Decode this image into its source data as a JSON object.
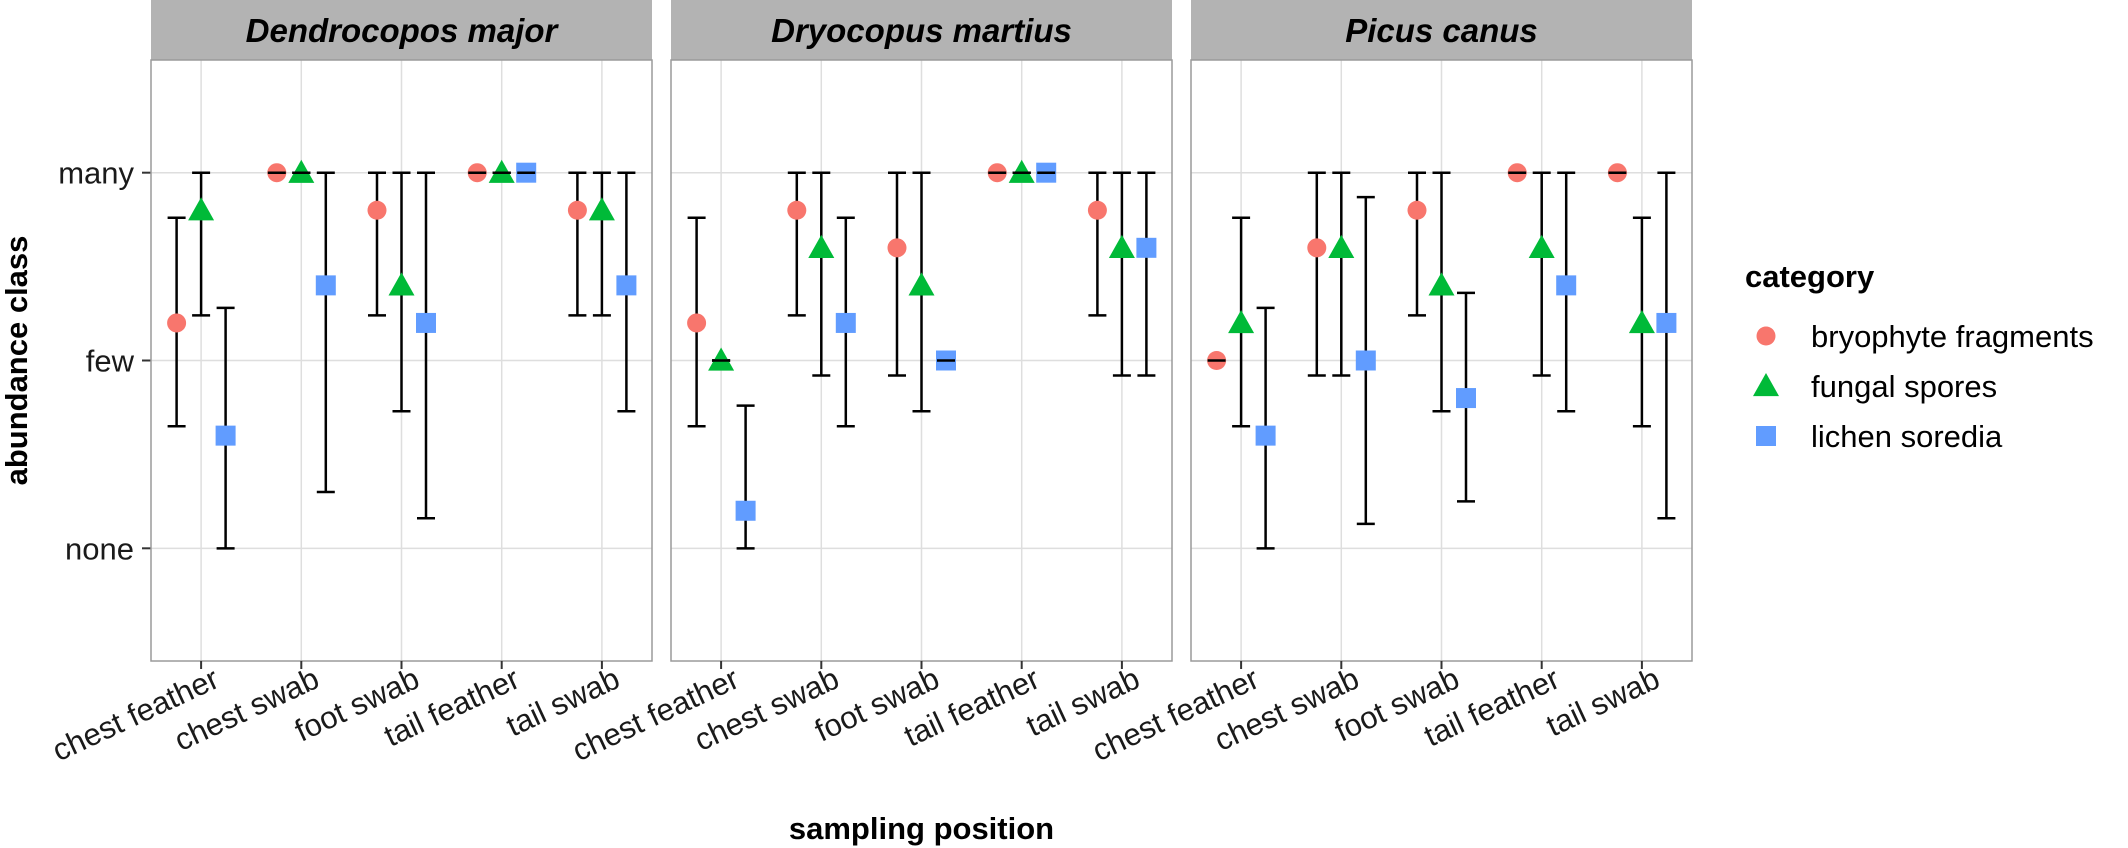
{
  "chart_data": {
    "type": "scatter",
    "facets": [
      "Dendrocopos major",
      "Dryocopus martius",
      "Picus canus"
    ],
    "categories": [
      "chest feather",
      "chest swab",
      "foot swab",
      "tail feather",
      "tail swab"
    ],
    "ylabel": "abundance class",
    "xlabel": "sampling position",
    "y_ticks": [
      {
        "label": "none",
        "value": 0
      },
      {
        "label": "few",
        "value": 1
      },
      {
        "label": "many",
        "value": 2
      }
    ],
    "ylim": [
      -0.6,
      2.6
    ],
    "legend_title": "category",
    "legend_position": "right",
    "grid": true,
    "series": [
      {
        "name": "bryophyte fragments",
        "shape": "circle",
        "color": "#F8766D"
      },
      {
        "name": "fungal spores",
        "shape": "triangle",
        "color": "#00BA38"
      },
      {
        "name": "lichen soredia",
        "shape": "square",
        "color": "#619CFF"
      }
    ],
    "points": {
      "Dendrocopos major": [
        [
          {
            "y": 1.2,
            "lo": 0.65,
            "hi": 1.76
          },
          {
            "y": 1.8,
            "lo": 1.24,
            "hi": 2.0
          },
          {
            "y": 0.6,
            "lo": 0.0,
            "hi": 1.28
          }
        ],
        [
          {
            "y": 2.0,
            "lo": 2.0,
            "hi": 2.0
          },
          {
            "y": 2.0,
            "lo": 2.0,
            "hi": 2.0
          },
          {
            "y": 1.4,
            "lo": 0.3,
            "hi": 2.0
          }
        ],
        [
          {
            "y": 1.8,
            "lo": 1.24,
            "hi": 2.0
          },
          {
            "y": 1.4,
            "lo": 0.73,
            "hi": 2.0
          },
          {
            "y": 1.2,
            "lo": 0.16,
            "hi": 2.0
          }
        ],
        [
          {
            "y": 2.0,
            "lo": 2.0,
            "hi": 2.0
          },
          {
            "y": 2.0,
            "lo": 2.0,
            "hi": 2.0
          },
          {
            "y": 2.0,
            "lo": 2.0,
            "hi": 2.0
          }
        ],
        [
          {
            "y": 1.8,
            "lo": 1.24,
            "hi": 2.0
          },
          {
            "y": 1.8,
            "lo": 1.24,
            "hi": 2.0
          },
          {
            "y": 1.4,
            "lo": 0.73,
            "hi": 2.0
          }
        ]
      ],
      "Dryocopus martius": [
        [
          {
            "y": 1.2,
            "lo": 0.65,
            "hi": 1.76
          },
          {
            "y": 1.0,
            "lo": 1.0,
            "hi": 1.0
          },
          {
            "y": 0.2,
            "lo": 0.0,
            "hi": 0.76
          }
        ],
        [
          {
            "y": 1.8,
            "lo": 1.24,
            "hi": 2.0
          },
          {
            "y": 1.6,
            "lo": 0.92,
            "hi": 2.0
          },
          {
            "y": 1.2,
            "lo": 0.65,
            "hi": 1.76
          }
        ],
        [
          {
            "y": 1.6,
            "lo": 0.92,
            "hi": 2.0
          },
          {
            "y": 1.4,
            "lo": 0.73,
            "hi": 2.0
          },
          {
            "y": 1.0,
            "lo": 1.0,
            "hi": 1.0
          }
        ],
        [
          {
            "y": 2.0,
            "lo": 2.0,
            "hi": 2.0
          },
          {
            "y": 2.0,
            "lo": 2.0,
            "hi": 2.0
          },
          {
            "y": 2.0,
            "lo": 2.0,
            "hi": 2.0
          }
        ],
        [
          {
            "y": 1.8,
            "lo": 1.24,
            "hi": 2.0
          },
          {
            "y": 1.6,
            "lo": 0.92,
            "hi": 2.0
          },
          {
            "y": 1.6,
            "lo": 0.92,
            "hi": 2.0
          }
        ]
      ],
      "Picus canus": [
        [
          {
            "y": 1.0,
            "lo": 1.0,
            "hi": 1.0
          },
          {
            "y": 1.2,
            "lo": 0.65,
            "hi": 1.76
          },
          {
            "y": 0.6,
            "lo": 0.0,
            "hi": 1.28
          }
        ],
        [
          {
            "y": 1.6,
            "lo": 0.92,
            "hi": 2.0
          },
          {
            "y": 1.6,
            "lo": 0.92,
            "hi": 2.0
          },
          {
            "y": 1.0,
            "lo": 0.13,
            "hi": 1.87
          }
        ],
        [
          {
            "y": 1.8,
            "lo": 1.24,
            "hi": 2.0
          },
          {
            "y": 1.4,
            "lo": 0.73,
            "hi": 2.0
          },
          {
            "y": 0.8,
            "lo": 0.25,
            "hi": 1.36
          }
        ],
        [
          {
            "y": 2.0,
            "lo": 2.0,
            "hi": 2.0
          },
          {
            "y": 1.6,
            "lo": 0.92,
            "hi": 2.0
          },
          {
            "y": 1.4,
            "lo": 0.73,
            "hi": 2.0
          }
        ],
        [
          {
            "y": 2.0,
            "lo": 2.0,
            "hi": 2.0
          },
          {
            "y": 1.2,
            "lo": 0.65,
            "hi": 1.76
          },
          {
            "y": 1.2,
            "lo": 0.16,
            "hi": 2.0
          }
        ]
      ]
    }
  }
}
